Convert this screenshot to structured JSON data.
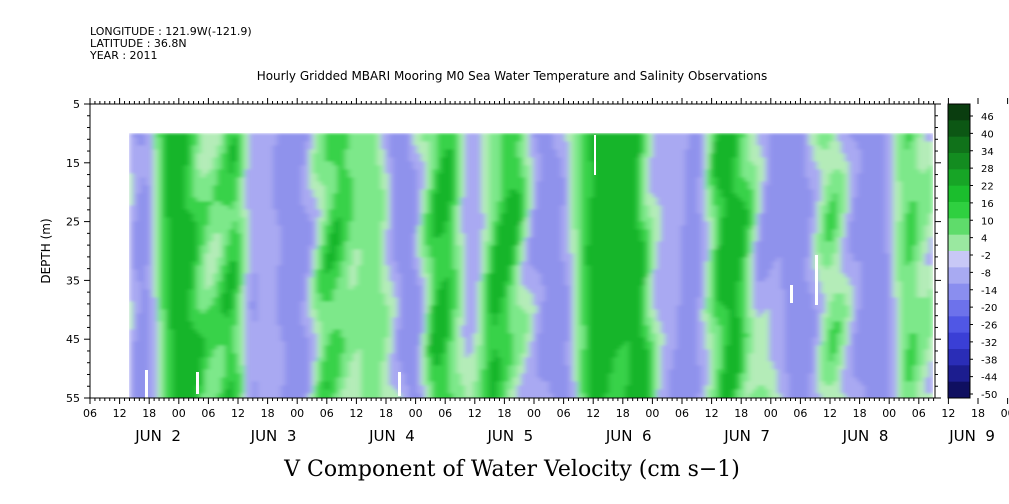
{
  "header": {
    "longitude": "LONGITUDE : 121.9W(-121.9)",
    "latitude": "LATITUDE : 36.8N",
    "year": "YEAR : 2011"
  },
  "chart_data": {
    "type": "heatmap",
    "title": "Hourly Gridded MBARI Mooring M0 Sea Water Temperature and Salinity Observations",
    "xlabel": "V Component of Water Velocity (cm s−1)",
    "ylabel": "DEPTH (m)",
    "ylim": [
      55,
      5
    ],
    "y_ticks": [
      "5",
      "15",
      "25",
      "35",
      "45",
      "55"
    ],
    "x_hour_ticks": [
      "06",
      "12",
      "18",
      "00",
      "06",
      "12",
      "18",
      "00",
      "06",
      "12",
      "18",
      "00",
      "06",
      "12",
      "18",
      "00",
      "06",
      "12",
      "18",
      "00",
      "06",
      "12",
      "18",
      "00",
      "06",
      "12",
      "18",
      "00",
      "06",
      "12",
      "18",
      "00",
      "06"
    ],
    "x_day_labels": [
      "JUN  2",
      "JUN  3",
      "JUN  4",
      "JUN  5",
      "JUN  6",
      "JUN  7",
      "JUN  8",
      "JUN  9"
    ],
    "data_depth_range_m": [
      10,
      55
    ],
    "colorbar_labels": [
      "46",
      "40",
      "34",
      "28",
      "22",
      "16",
      "10",
      "4",
      "-2",
      "-8",
      "-14",
      "-20",
      "-26",
      "-32",
      "-38",
      "-44",
      "-50"
    ],
    "colorbar_range": [
      -50,
      52
    ],
    "colors": {
      "strong_positive": "#0a4a12",
      "positive": "#1cc42e",
      "weak_positive": "#7fe88c",
      "near_zero": "#aee8b4",
      "weak_negative": "#9ea0f0",
      "negative": "#4a52e0",
      "strong_negative": "#000050"
    }
  }
}
